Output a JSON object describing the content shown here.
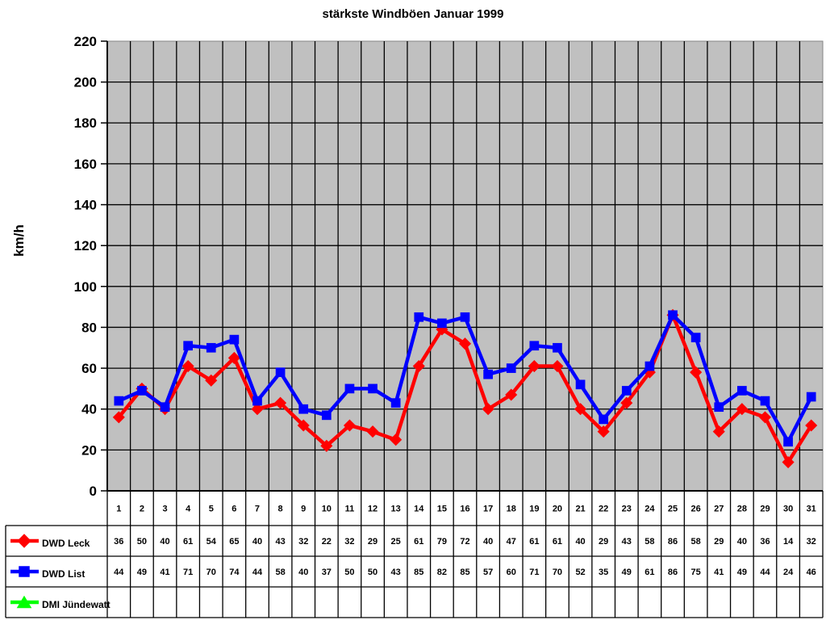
{
  "chart_data": {
    "type": "line",
    "title": "stärkste Windböen Januar 1999",
    "ylabel": "km/h",
    "xlabel": "",
    "ylim": [
      0,
      220
    ],
    "ytick_step": 20,
    "grid": true,
    "plot_background": "#c0c0c0",
    "grid_color": "#000000",
    "legend_position": "bottom-left-table",
    "categories": [
      1,
      2,
      3,
      4,
      5,
      6,
      7,
      8,
      9,
      10,
      11,
      12,
      13,
      14,
      15,
      16,
      17,
      18,
      19,
      20,
      21,
      22,
      23,
      24,
      25,
      26,
      27,
      28,
      29,
      30,
      31
    ],
    "series": [
      {
        "name": "DWD Leck",
        "color": "#ff0000",
        "marker": "diamond",
        "values": [
          36,
          50,
          40,
          61,
          54,
          65,
          40,
          43,
          32,
          22,
          32,
          29,
          25,
          61,
          79,
          72,
          40,
          47,
          61,
          61,
          40,
          29,
          43,
          58,
          86,
          58,
          29,
          40,
          36,
          14,
          32
        ]
      },
      {
        "name": "DWD List",
        "color": "#0000ff",
        "marker": "square",
        "values": [
          44,
          49,
          41,
          71,
          70,
          74,
          44,
          58,
          40,
          37,
          50,
          50,
          43,
          85,
          82,
          85,
          57,
          60,
          71,
          70,
          52,
          35,
          49,
          61,
          86,
          75,
          41,
          49,
          44,
          24,
          46
        ]
      },
      {
        "name": "DMI Jündewatt",
        "color": "#00ff00",
        "marker": "triangle",
        "values": []
      }
    ]
  }
}
